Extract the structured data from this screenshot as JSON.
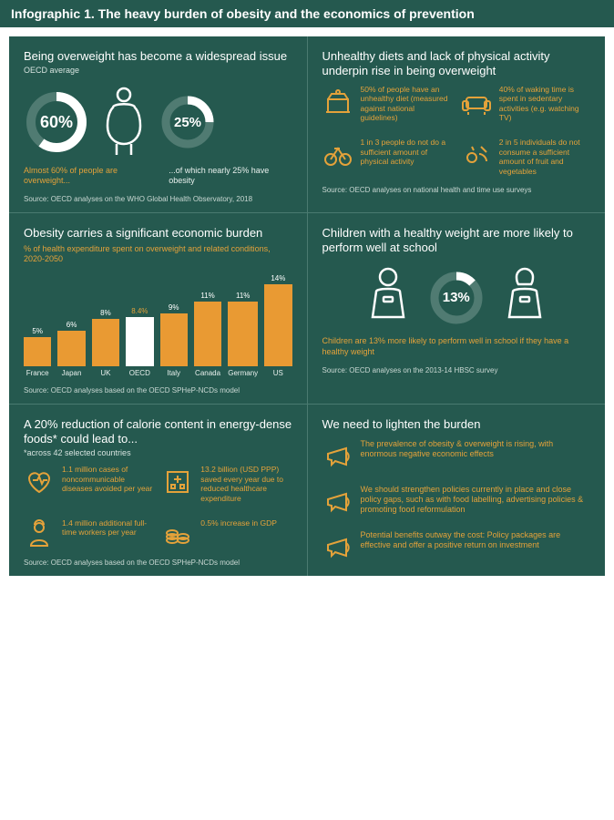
{
  "colors": {
    "bg": "#25594f",
    "accent": "#e4a23a",
    "bar_highlight": "#ffffff",
    "bar_default": "#e99a33",
    "ring_bg": "#507b72",
    "ring_fg": "#ffffff"
  },
  "header": "Infographic 1. The heavy burden of obesity and the economics of prevention",
  "p1": {
    "title": "Being overweight has become a widespread issue",
    "sub": "OECD average",
    "d1": {
      "value": "60%",
      "pct": 60
    },
    "d2": {
      "value": "25%",
      "pct": 25
    },
    "cap1": "Almost 60% of people are overweight...",
    "cap2": "...of which nearly 25% have obesity",
    "source": "Source: OECD analyses on the WHO Global Health Observatory, 2018"
  },
  "p2": {
    "title": "Unhealthy diets and lack of physical activity underpin rise in being overweight",
    "items": [
      "50% of people have an unhealthy diet (measured against national guidelines)",
      "40% of waking time is spent in sedentary activities (e.g. watching TV)",
      "1 in 3 people do not do a sufficient amount of physical activity",
      "2 in 5 individuals do not consume a sufficient amount of fruit and vegetables"
    ],
    "source": "Source: OECD analyses on national health and time use surveys"
  },
  "p3": {
    "title": "Obesity carries a significant economic burden",
    "sub": "% of health expenditure spent on overweight and related conditions, 2020-2050",
    "chart": {
      "type": "bar",
      "max": 14,
      "bars": [
        {
          "label": "France",
          "value": 5,
          "color": "#e99a33"
        },
        {
          "label": "Japan",
          "value": 6,
          "color": "#e99a33"
        },
        {
          "label": "UK",
          "value": 8,
          "color": "#e99a33"
        },
        {
          "label": "OECD",
          "value": 8.4,
          "color": "#ffffff"
        },
        {
          "label": "Italy",
          "value": 9,
          "color": "#e99a33"
        },
        {
          "label": "Canada",
          "value": 11,
          "color": "#e99a33"
        },
        {
          "label": "Germany",
          "value": 11,
          "color": "#e99a33"
        },
        {
          "label": "US",
          "value": 14,
          "color": "#e99a33"
        }
      ]
    },
    "source": "Source: OECD analyses based on the OECD SPHeP-NCDs model"
  },
  "p4": {
    "title": "Children with a healthy weight are more likely to perform well at school",
    "donut": {
      "value": "13%",
      "pct": 13
    },
    "cap": "Children are 13% more likely to perform well in school if they have a healthy weight",
    "source": "Source: OECD analyses on the 2013-14 HBSC survey"
  },
  "p5": {
    "title": "A 20% reduction of calorie content in energy-dense foods* could lead to...",
    "sub": "*across 42 selected countries",
    "items": [
      "1.1 million cases of noncommunicable diseases avoided per year",
      "13.2 billion (USD PPP) saved every year due to reduced healthcare expenditure",
      "1.4 million additional full-time workers per year",
      "0.5% increase in GDP"
    ],
    "source": "Source: OECD analyses based on the OECD SPHeP-NCDs model"
  },
  "p6": {
    "title": "We need to lighten the burden",
    "items": [
      "The prevalence of obesity & overweight is rising, with enormous negative economic effects",
      "We should strengthen policies currently in place and close policy gaps, such as with food labelling, advertising policies & promoting food reformulation",
      "Potential benefits outway the cost: Policy packages are effective and offer a positive return on investment"
    ]
  }
}
